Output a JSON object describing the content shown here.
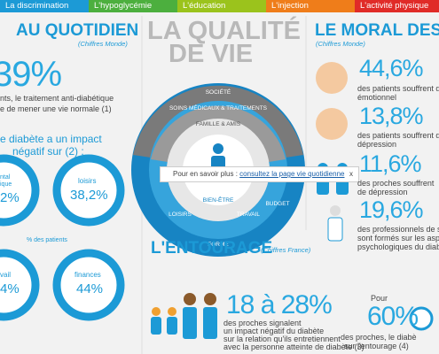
{
  "nav": {
    "tabs": [
      "La discrimination",
      "L'hypoglycémie",
      "L'éducation",
      "L'injection",
      "L'activité physique"
    ]
  },
  "left": {
    "title": "AU QUOTIDIEN",
    "source": "(Chiffres Monde)",
    "big": "39%",
    "lines": [
      "nts, le traitement anti-diabétique",
      "e de mener une vie normale (1)"
    ],
    "impact": [
      "e diabète a un impact",
      "négatif sur (2) :"
    ],
    "circles": [
      {
        "label": [
          "ntal",
          "ique"
        ],
        "value": "2%"
      },
      {
        "label": [
          "loisirs"
        ],
        "value": "38,2%"
      },
      {
        "label": [
          "vail"
        ],
        "value": "4%"
      },
      {
        "label": [
          "finances"
        ],
        "value": "44%"
      }
    ],
    "note": "% des patients"
  },
  "center": {
    "title": [
      "LA QUALITÉ",
      "DE VIE"
    ],
    "rings": [
      "SOCIÉTÉ",
      "SOINS MÉDICAUX & TRAITEMENTS",
      "FAMILLE & AMIS",
      "BIEN-ÊTRE",
      "TRAVAIL",
      "BUDGET",
      "LOISIRS",
      "FORME"
    ],
    "tooltip": {
      "text": "Pour en savoir plus :",
      "link": "consultez la page vie quotidienne",
      "close": "x"
    }
  },
  "entourage": {
    "title": "L'ENTOURAGE",
    "source": "(Chiffres France)",
    "big": "18 à 28%",
    "lines": [
      "des proches signalent",
      "un impact négatif du diabète",
      "sur la relation qu'ils entretiennent",
      "avec la personne atteinte de diabète (3)"
    ],
    "pre": "Pour",
    "big2": "60%",
    "lines2": [
      "des proches, le diabè",
      "sur l'entourage (4)"
    ]
  },
  "right": {
    "title": "LE MORAL DES P",
    "source": "(Chiffres Monde)",
    "stats": [
      {
        "value": "44,6%",
        "lines": [
          "des patients souffrent d",
          "émotionnel"
        ]
      },
      {
        "value": "13,8%",
        "lines": [
          "des patients souffrent de",
          "dépression"
        ]
      },
      {
        "value": "11,6%",
        "lines": [
          "des proches souffrent",
          "de dépression"
        ]
      },
      {
        "value": "19,6%",
        "lines": [
          "des professionnels de sa",
          "sont formés sur les aspe",
          "psychologiques du diab"
        ]
      }
    ]
  }
}
